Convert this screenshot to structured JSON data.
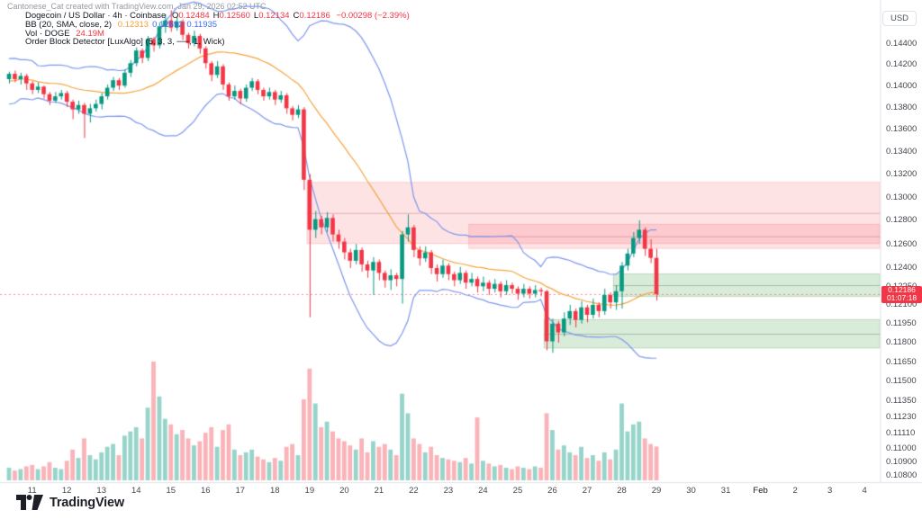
{
  "attribution": "Cantonese_Cat created with TradingView.com, Jan 29, 2026 02:52 UTC",
  "legend": {
    "symbol_row": {
      "title": "Dogecoin / US Dollar · 4h · Coinbase",
      "ohlc_parts": [
        {
          "k": "O",
          "v": "0.12484"
        },
        {
          "k": "H",
          "v": "0.12560"
        },
        {
          "k": "L",
          "v": "0.12134"
        },
        {
          "k": "C",
          "v": "0.12186"
        }
      ],
      "change": "−0.00298 (−2.39%)"
    },
    "bb_row": {
      "label": "BB (20, SMA, close, 2)",
      "values": [
        "0.12313",
        "0.12692",
        "0.11935"
      ],
      "value_colors": [
        "#f89c35",
        "#3d6df2",
        "#3d6df2"
      ]
    },
    "vol_row": {
      "label": "Vol · DOGE",
      "value": "24.19M",
      "value_color": "#f23645"
    },
    "ob_row": {
      "label": "Order Block Detector [LuxAlgo] (5, 3, 3, ──, 1, Wick)"
    }
  },
  "price_axis": {
    "currency": "USD",
    "ticks": [
      "0.14400",
      "0.14200",
      "0.14000",
      "0.13800",
      "0.13600",
      "0.13400",
      "0.13200",
      "0.13000",
      "0.12800",
      "0.12600",
      "0.12400",
      "0.12250",
      "0.12100",
      "0.11950",
      "0.11800",
      "0.11650",
      "0.11500",
      "0.11350",
      "0.11230",
      "0.11110",
      "0.11000",
      "0.10900",
      "0.10800"
    ],
    "last_price_label": "0.12186",
    "countdown": "01:07:18"
  },
  "time_axis": {
    "labels": [
      {
        "text": "11",
        "slot": 4
      },
      {
        "text": "12",
        "slot": 10
      },
      {
        "text": "13",
        "slot": 16
      },
      {
        "text": "14",
        "slot": 22
      },
      {
        "text": "15",
        "slot": 28
      },
      {
        "text": "16",
        "slot": 34
      },
      {
        "text": "17",
        "slot": 40
      },
      {
        "text": "18",
        "slot": 46
      },
      {
        "text": "19",
        "slot": 52
      },
      {
        "text": "20",
        "slot": 58
      },
      {
        "text": "21",
        "slot": 64
      },
      {
        "text": "22",
        "slot": 70
      },
      {
        "text": "23",
        "slot": 76
      },
      {
        "text": "24",
        "slot": 82
      },
      {
        "text": "25",
        "slot": 88
      },
      {
        "text": "26",
        "slot": 94
      },
      {
        "text": "27",
        "slot": 100
      },
      {
        "text": "28",
        "slot": 106
      },
      {
        "text": "29",
        "slot": 112
      },
      {
        "text": "30",
        "slot": 118
      },
      {
        "text": "31",
        "slot": 124
      },
      {
        "text": "Feb",
        "slot": 130
      },
      {
        "text": "2",
        "slot": 136
      },
      {
        "text": "3",
        "slot": 142
      },
      {
        "text": "4",
        "slot": 148
      }
    ]
  },
  "logo": {
    "brand": "TradingView"
  },
  "chart_data": {
    "type": "candlestick+volume",
    "symbol": "Dogecoin / US Dollar",
    "exchange": "Coinbase",
    "interval": "4h",
    "price_scale": "log",
    "first_candle_time": "Jan 10 2026 08:00 UTC",
    "last_candle_time": "Jan 29 2026 00:00 UTC",
    "last_price": 0.12186,
    "volume_unit": "millions DOGE",
    "candle_schema": [
      "open",
      "high",
      "low",
      "close",
      "volume_m"
    ],
    "pre_history_closes": [
      0.1408,
      0.1396,
      0.1382,
      0.1402,
      0.1415,
      0.1428,
      0.141,
      0.1399,
      0.1391,
      0.1404,
      0.1412,
      0.142,
      0.1407,
      0.1395,
      0.1389,
      0.1397,
      0.1405,
      0.1411,
      0.1403,
      0.1406
    ],
    "candles": [
      [
        0.1406,
        0.1413,
        0.1402,
        0.1411,
        9
      ],
      [
        0.1411,
        0.1414,
        0.1403,
        0.1406,
        7
      ],
      [
        0.1406,
        0.1412,
        0.1401,
        0.1409,
        8
      ],
      [
        0.1409,
        0.1411,
        0.1396,
        0.1402,
        10
      ],
      [
        0.1402,
        0.1404,
        0.1392,
        0.1396,
        11
      ],
      [
        0.1396,
        0.1403,
        0.1393,
        0.1399,
        8
      ],
      [
        0.1399,
        0.14,
        0.1388,
        0.1392,
        10
      ],
      [
        0.1392,
        0.1394,
        0.1382,
        0.1386,
        13
      ],
      [
        0.1386,
        0.1394,
        0.1384,
        0.139,
        9
      ],
      [
        0.139,
        0.1396,
        0.1387,
        0.1393,
        8
      ],
      [
        0.1393,
        0.1395,
        0.138,
        0.1385,
        14
      ],
      [
        0.1385,
        0.1387,
        0.1369,
        0.1378,
        22
      ],
      [
        0.1378,
        0.1386,
        0.1374,
        0.1382,
        16
      ],
      [
        0.1382,
        0.1384,
        0.1352,
        0.1374,
        30
      ],
      [
        0.1374,
        0.1383,
        0.1366,
        0.1379,
        18
      ],
      [
        0.1379,
        0.1387,
        0.1376,
        0.1383,
        15
      ],
      [
        0.1383,
        0.1393,
        0.1378,
        0.139,
        20
      ],
      [
        0.139,
        0.1401,
        0.1387,
        0.1398,
        24
      ],
      [
        0.1398,
        0.1408,
        0.1395,
        0.1405,
        26
      ],
      [
        0.1405,
        0.1407,
        0.1396,
        0.14,
        18
      ],
      [
        0.14,
        0.1415,
        0.1398,
        0.1412,
        32
      ],
      [
        0.1412,
        0.1424,
        0.1408,
        0.1421,
        35
      ],
      [
        0.1421,
        0.1436,
        0.1418,
        0.1433,
        38
      ],
      [
        0.1433,
        0.1435,
        0.1421,
        0.1426,
        30
      ],
      [
        0.1426,
        0.1447,
        0.1423,
        0.1444,
        52
      ],
      [
        0.1444,
        0.1446,
        0.1432,
        0.1438,
        85
      ],
      [
        0.1438,
        0.146,
        0.1435,
        0.1456,
        60
      ],
      [
        0.1456,
        0.1468,
        0.145,
        0.1462,
        44
      ],
      [
        0.1462,
        0.1472,
        0.1451,
        0.1455,
        40
      ],
      [
        0.1455,
        0.1466,
        0.1452,
        0.1461,
        33
      ],
      [
        0.1461,
        0.1463,
        0.1443,
        0.1448,
        36
      ],
      [
        0.1448,
        0.145,
        0.1435,
        0.144,
        30
      ],
      [
        0.144,
        0.1452,
        0.1437,
        0.1447,
        25
      ],
      [
        0.1447,
        0.1449,
        0.143,
        0.1435,
        28
      ],
      [
        0.1435,
        0.1437,
        0.1416,
        0.1421,
        34
      ],
      [
        0.1421,
        0.1423,
        0.1404,
        0.141,
        38
      ],
      [
        0.141,
        0.1423,
        0.1407,
        0.1418,
        24
      ],
      [
        0.1418,
        0.142,
        0.1396,
        0.1401,
        36
      ],
      [
        0.1401,
        0.1403,
        0.1386,
        0.139,
        40
      ],
      [
        0.139,
        0.14,
        0.1387,
        0.1395,
        22
      ],
      [
        0.1395,
        0.1397,
        0.1383,
        0.1388,
        18
      ],
      [
        0.1388,
        0.1401,
        0.1385,
        0.1398,
        20
      ],
      [
        0.1398,
        0.1407,
        0.1395,
        0.1404,
        22
      ],
      [
        0.1404,
        0.1406,
        0.1392,
        0.1396,
        17
      ],
      [
        0.1396,
        0.1398,
        0.1386,
        0.139,
        15
      ],
      [
        0.139,
        0.1398,
        0.1387,
        0.1394,
        13
      ],
      [
        0.1394,
        0.1396,
        0.1382,
        0.1387,
        16
      ],
      [
        0.1387,
        0.1395,
        0.1384,
        0.1391,
        14
      ],
      [
        0.1391,
        0.1393,
        0.1374,
        0.1379,
        24
      ],
      [
        0.1379,
        0.1381,
        0.1368,
        0.1373,
        26
      ],
      [
        0.1373,
        0.1382,
        0.137,
        0.1378,
        18
      ],
      [
        0.1378,
        0.138,
        0.1306,
        0.1315,
        58
      ],
      [
        0.1315,
        0.132,
        0.12,
        0.1272,
        80
      ],
      [
        0.1272,
        0.1288,
        0.1265,
        0.1281,
        55
      ],
      [
        0.1281,
        0.1284,
        0.1268,
        0.1274,
        38
      ],
      [
        0.1274,
        0.1287,
        0.127,
        0.1282,
        42
      ],
      [
        0.1282,
        0.1285,
        0.1262,
        0.1268,
        35
      ],
      [
        0.1268,
        0.1272,
        0.1256,
        0.1262,
        30
      ],
      [
        0.1262,
        0.1265,
        0.1247,
        0.1253,
        28
      ],
      [
        0.1253,
        0.1256,
        0.124,
        0.1246,
        25
      ],
      [
        0.1246,
        0.126,
        0.1243,
        0.1255,
        22
      ],
      [
        0.1255,
        0.1257,
        0.1237,
        0.1243,
        30
      ],
      [
        0.1243,
        0.1246,
        0.1232,
        0.1238,
        20
      ],
      [
        0.1238,
        0.1249,
        0.1218,
        0.1245,
        28
      ],
      [
        0.1245,
        0.1247,
        0.123,
        0.1236,
        24
      ],
      [
        0.1236,
        0.1238,
        0.1224,
        0.123,
        26
      ],
      [
        0.123,
        0.1239,
        0.1222,
        0.1234,
        22
      ],
      [
        0.1234,
        0.1236,
        0.1225,
        0.1231,
        18
      ],
      [
        0.1231,
        0.1271,
        0.1211,
        0.1268,
        62
      ],
      [
        0.1268,
        0.1285,
        0.1262,
        0.1274,
        48
      ],
      [
        0.1274,
        0.1276,
        0.1249,
        0.1255,
        30
      ],
      [
        0.1255,
        0.1258,
        0.1242,
        0.1248,
        26
      ],
      [
        0.1248,
        0.1258,
        0.1245,
        0.1253,
        20
      ],
      [
        0.1253,
        0.1255,
        0.1235,
        0.124,
        24
      ],
      [
        0.124,
        0.1243,
        0.1229,
        0.1235,
        18
      ],
      [
        0.1235,
        0.1247,
        0.1232,
        0.1242,
        16
      ],
      [
        0.1242,
        0.1244,
        0.123,
        0.1235,
        15
      ],
      [
        0.1235,
        0.1237,
        0.1225,
        0.123,
        14
      ],
      [
        0.123,
        0.1241,
        0.1227,
        0.1236,
        13
      ],
      [
        0.1236,
        0.1238,
        0.1223,
        0.1228,
        16
      ],
      [
        0.1228,
        0.1236,
        0.1225,
        0.1231,
        12
      ],
      [
        0.1231,
        0.1233,
        0.122,
        0.1225,
        45
      ],
      [
        0.1225,
        0.1233,
        0.1221,
        0.1228,
        14
      ],
      [
        0.1228,
        0.123,
        0.1218,
        0.1223,
        12
      ],
      [
        0.1223,
        0.1231,
        0.122,
        0.1227,
        10
      ],
      [
        0.1227,
        0.1229,
        0.1216,
        0.1221,
        11
      ],
      [
        0.1221,
        0.123,
        0.1218,
        0.1226,
        9
      ],
      [
        0.1226,
        0.1228,
        0.1219,
        0.1223,
        8
      ],
      [
        0.1223,
        0.1225,
        0.1214,
        0.1219,
        10
      ],
      [
        0.1219,
        0.1227,
        0.1216,
        0.1223,
        9
      ],
      [
        0.1223,
        0.1225,
        0.1215,
        0.1219,
        8
      ],
      [
        0.1219,
        0.1226,
        0.1216,
        0.1222,
        10
      ],
      [
        0.1222,
        0.1224,
        0.1217,
        0.1221,
        9
      ],
      [
        0.1221,
        0.1222,
        0.1174,
        0.1181,
        48
      ],
      [
        0.1181,
        0.1199,
        0.1172,
        0.1195,
        36
      ],
      [
        0.1195,
        0.1197,
        0.118,
        0.1188,
        22
      ],
      [
        0.1188,
        0.1204,
        0.1185,
        0.1199,
        25
      ],
      [
        0.1199,
        0.121,
        0.1194,
        0.1205,
        20
      ],
      [
        0.1205,
        0.1207,
        0.1192,
        0.1198,
        18
      ],
      [
        0.1198,
        0.1213,
        0.1195,
        0.1208,
        24
      ],
      [
        0.1208,
        0.121,
        0.1196,
        0.1202,
        16
      ],
      [
        0.1202,
        0.1215,
        0.1199,
        0.121,
        18
      ],
      [
        0.121,
        0.1212,
        0.12,
        0.1205,
        14
      ],
      [
        0.1205,
        0.1223,
        0.1202,
        0.1218,
        20
      ],
      [
        0.1218,
        0.122,
        0.1207,
        0.1212,
        15
      ],
      [
        0.1212,
        0.1226,
        0.1206,
        0.1221,
        22
      ],
      [
        0.1221,
        0.1245,
        0.1207,
        0.1242,
        55
      ],
      [
        0.1242,
        0.1256,
        0.1238,
        0.1252,
        35
      ],
      [
        0.1252,
        0.127,
        0.1249,
        0.1265,
        40
      ],
      [
        0.1265,
        0.128,
        0.126,
        0.1272,
        42
      ],
      [
        0.1272,
        0.1274,
        0.125,
        0.1256,
        30
      ],
      [
        0.1256,
        0.1264,
        0.1244,
        0.12484,
        26
      ],
      [
        0.12484,
        0.1256,
        0.12134,
        0.12186,
        24.19
      ]
    ],
    "bollinger": {
      "length": 20,
      "source": "close",
      "mult": 2,
      "basis_last": 0.12313,
      "upper_last": 0.12692,
      "lower_last": 0.11935
    },
    "order_blocks": [
      {
        "type": "bearish",
        "from_index": 52,
        "top": 0.1313,
        "bottom": 0.126
      },
      {
        "type": "bearish",
        "from_index": 80,
        "top": 0.1277,
        "bottom": 0.1256
      },
      {
        "type": "bullish",
        "from_index": 93,
        "top": 0.11985,
        "bottom": 0.11755
      },
      {
        "type": "bullish",
        "from_index": 105,
        "top": 0.12355,
        "bottom": 0.12165
      }
    ],
    "colors": {
      "up": "#089981",
      "down": "#f23645",
      "vol_up": "rgba(8,153,129,0.42)",
      "vol_down": "rgba(242,54,69,0.38)",
      "bb_band": "#7e97ef",
      "bb_basis": "#f5a53f",
      "ob_bearish_fill": "rgba(247,82,95,0.16)",
      "ob_bearish_line": "rgba(160,60,70,0.30)",
      "ob_bullish_fill": "rgba(83,164,81,0.22)",
      "ob_bullish_line": "rgba(90,125,90,0.40)",
      "last_price_line": "rgba(242,54,69,0.55)",
      "axis_border": "#e0e3eb"
    },
    "legend_note": "grid off, log price scale, volume pane overlaid at bottom"
  }
}
